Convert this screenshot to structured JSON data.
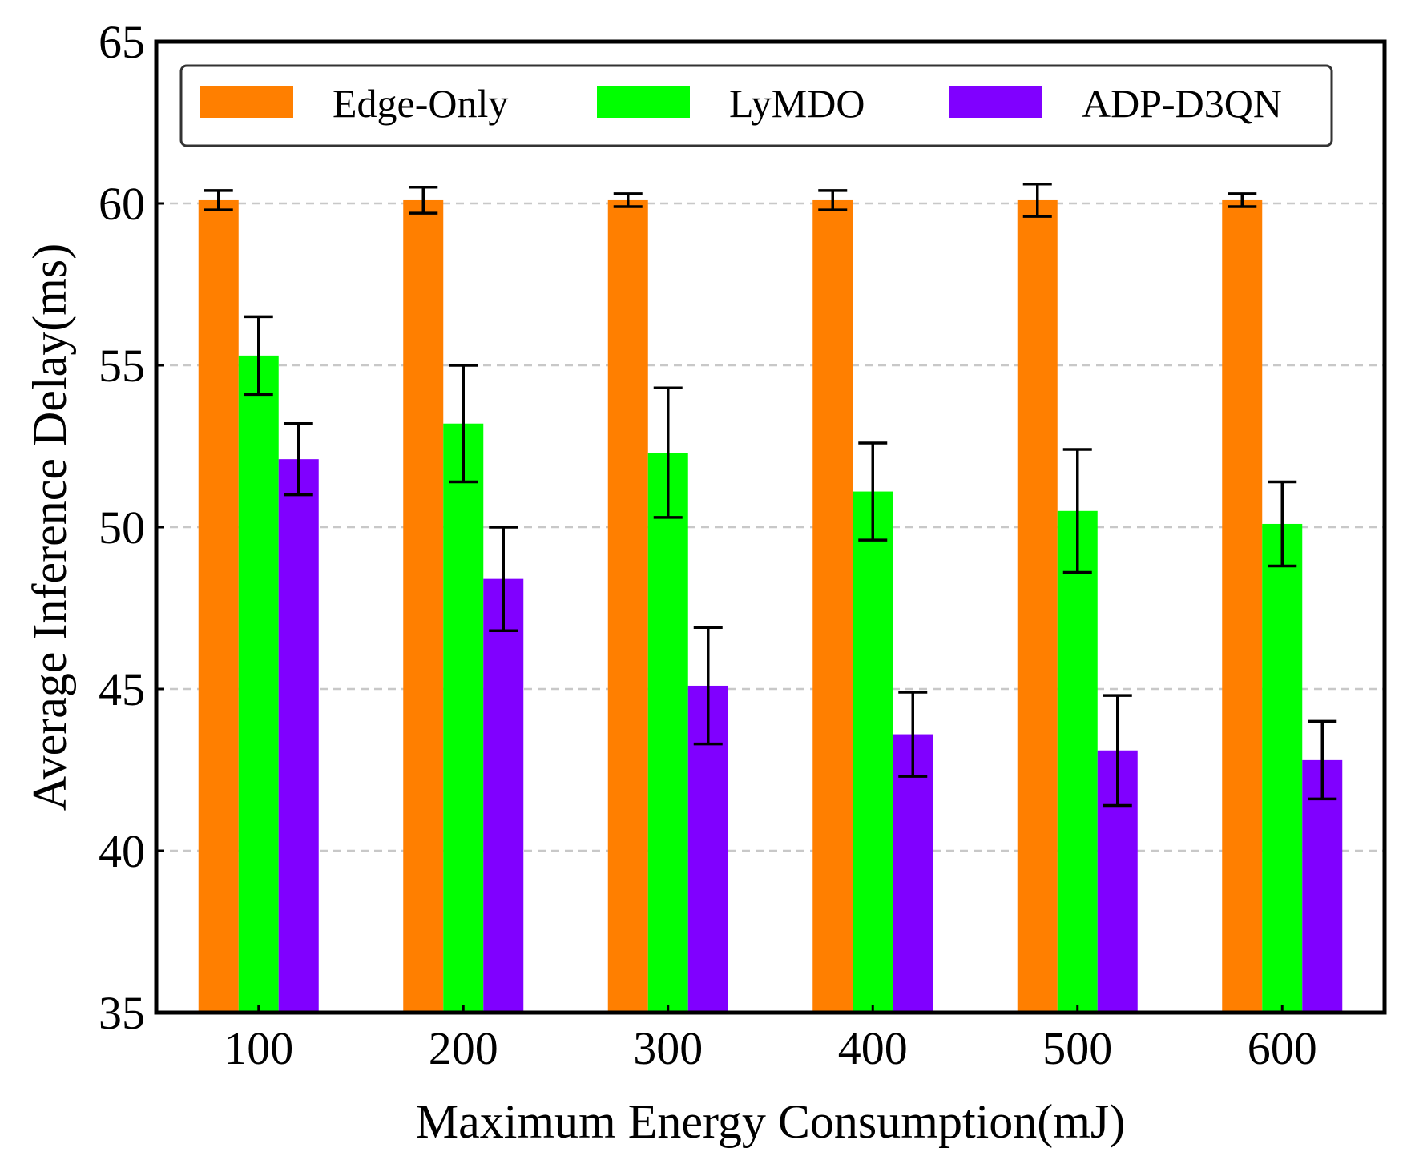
{
  "chart_data": {
    "type": "bar",
    "title": "",
    "xlabel": "Maximum Energy Consumption(mJ)",
    "ylabel": "Average Inference Delay(ms)",
    "categories": [
      "100",
      "200",
      "300",
      "400",
      "500",
      "600"
    ],
    "ylim": [
      35,
      65
    ],
    "yticks": [
      "35",
      "40",
      "45",
      "50",
      "55",
      "60",
      "65"
    ],
    "grid": "horizontal-dashed",
    "legend_position": "top",
    "series": [
      {
        "name": "Edge-Only",
        "color": "#ff7f00",
        "values": [
          60.1,
          60.1,
          60.1,
          60.1,
          60.1,
          60.1
        ],
        "errors": [
          0.3,
          0.4,
          0.2,
          0.3,
          0.5,
          0.2
        ]
      },
      {
        "name": "LyMDO",
        "color": "#00ff00",
        "values": [
          55.3,
          53.2,
          52.3,
          51.1,
          50.5,
          50.1
        ],
        "errors": [
          1.2,
          1.8,
          2.0,
          1.5,
          1.9,
          1.3
        ]
      },
      {
        "name": "ADP-D3QN",
        "color": "#8000ff",
        "values": [
          52.1,
          48.4,
          45.1,
          43.6,
          43.1,
          42.8
        ],
        "errors": [
          1.1,
          1.6,
          1.8,
          1.3,
          1.7,
          1.2
        ]
      }
    ]
  }
}
